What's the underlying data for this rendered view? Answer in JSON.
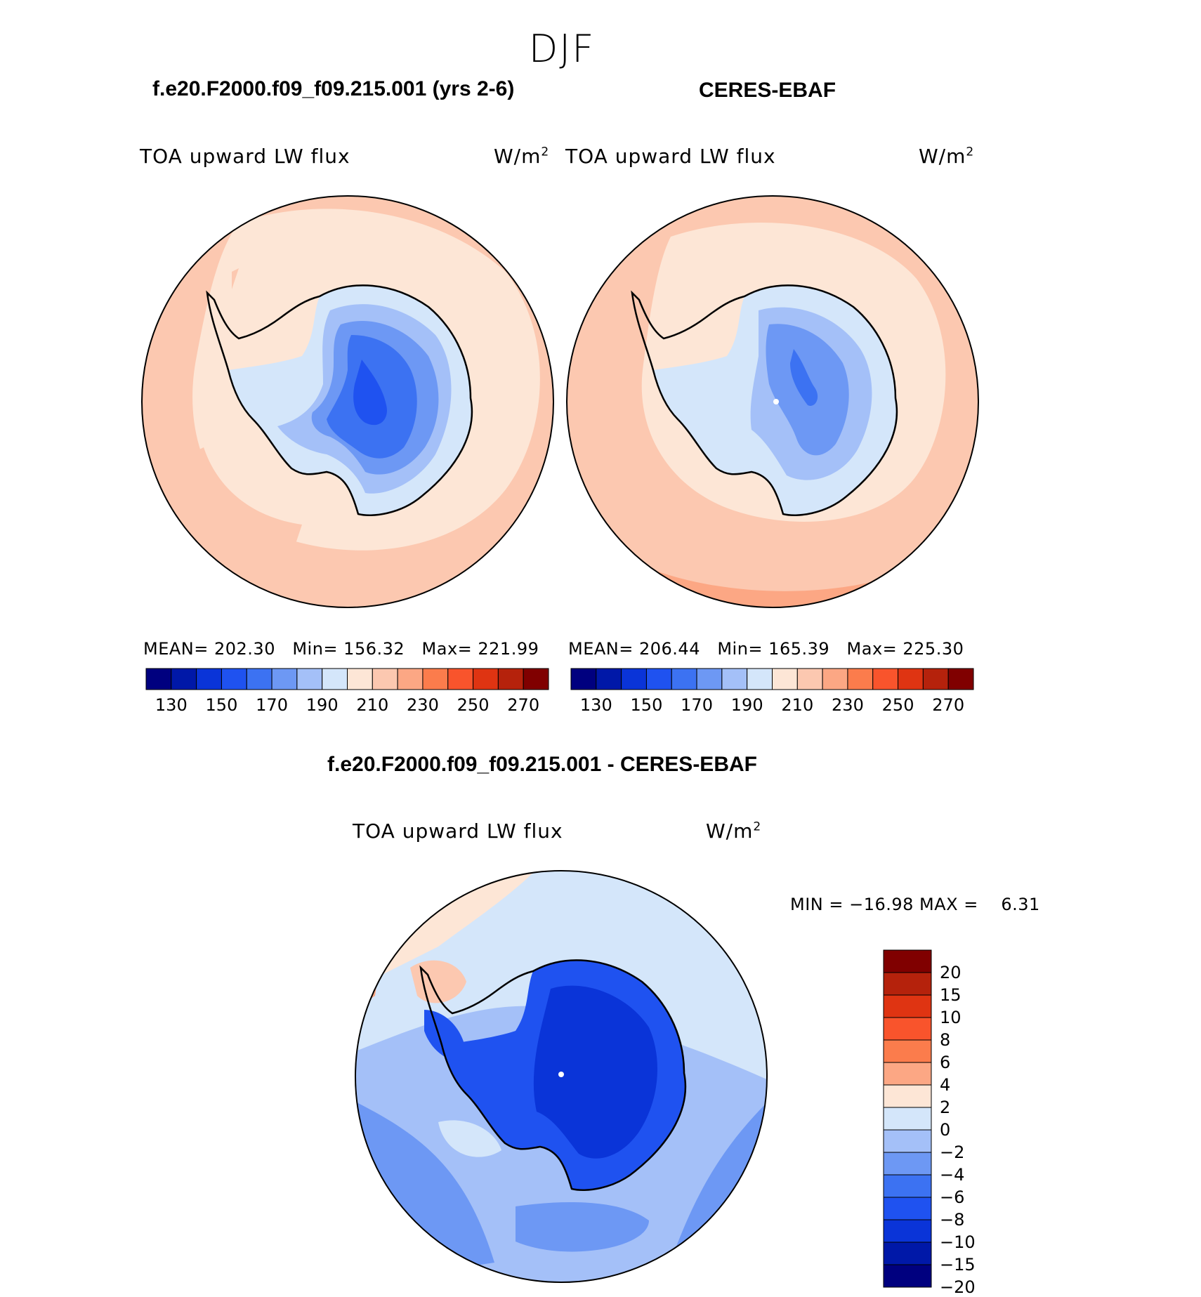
{
  "figure": {
    "season": "DJF",
    "variable": "TOA upward LW flux",
    "units_base": "W/m",
    "units_exp": "2"
  },
  "panels": [
    {
      "title": "f.e20.F2000.f09_f09.215.001 (yrs 2-6)",
      "stats": "MEAN= 202.30   Min= 156.32   Max= 221.99"
    },
    {
      "title": "CERES-EBAF",
      "stats": "MEAN= 206.44   Min= 165.39   Max= 225.30"
    }
  ],
  "diff_panel": {
    "title": "f.e20.F2000.f09_f09.215.001 - CERES-EBAF",
    "minmax": "MIN = −16.98 MAX =    6.31"
  },
  "chart_data": [
    {
      "type": "heatmap",
      "projection": "south-polar-stereographic",
      "title": "f.e20.F2000.f09_f09.215.001 (yrs 2-6)",
      "field": "TOA upward LW flux",
      "units": "W/m2",
      "mean": 202.3,
      "min": 156.32,
      "max": 221.99
    },
    {
      "type": "heatmap",
      "projection": "south-polar-stereographic",
      "title": "CERES-EBAF",
      "field": "TOA upward LW flux",
      "units": "W/m2",
      "mean": 206.44,
      "min": 165.39,
      "max": 225.3
    },
    {
      "type": "heatmap",
      "projection": "south-polar-stereographic",
      "title": "f.e20.F2000.f09_f09.215.001 - CERES-EBAF",
      "field": "TOA upward LW flux",
      "units": "W/m2",
      "min": -16.98,
      "max": 6.31
    }
  ],
  "colorbar_abs": {
    "levels": [
      120,
      130,
      140,
      150,
      160,
      170,
      180,
      190,
      200,
      210,
      220,
      230,
      240,
      250,
      260,
      270,
      280
    ],
    "tick_labels": [
      "130",
      "150",
      "170",
      "190",
      "210",
      "230",
      "250",
      "270"
    ],
    "colors": [
      "#00007f",
      "#0018a8",
      "#0a34d8",
      "#1f52f0",
      "#3c72f2",
      "#6d98f4",
      "#a4c0f8",
      "#d4e6fa",
      "#fde6d6",
      "#fcc8b0",
      "#fca784",
      "#fb7c4c",
      "#f9542c",
      "#df3412",
      "#b5220c",
      "#800000"
    ]
  },
  "colorbar_diff": {
    "labels": [
      "20",
      "15",
      "10",
      "8",
      "6",
      "4",
      "2",
      "0",
      "−2",
      "−4",
      "−6",
      "−8",
      "−10",
      "−15",
      "−20"
    ],
    "colors": [
      "#800000",
      "#b5220c",
      "#df3412",
      "#f9542c",
      "#fb7c4c",
      "#fca784",
      "#fde6d6",
      "#d4e6fa",
      "#a4c0f8",
      "#6d98f4",
      "#3c72f2",
      "#1f52f0",
      "#0a34d8",
      "#0018a8",
      "#00007f"
    ]
  }
}
